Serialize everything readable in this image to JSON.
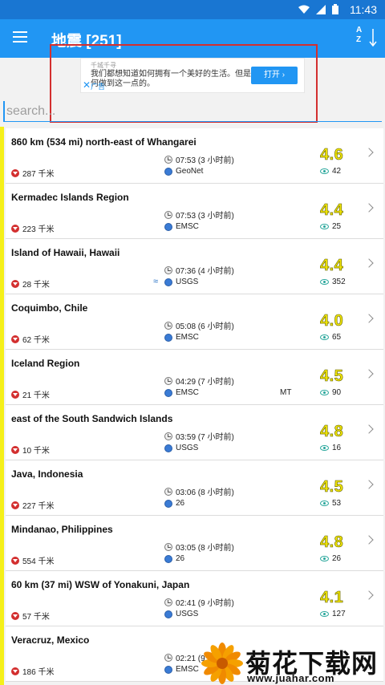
{
  "status": {
    "time": "11:43"
  },
  "appbar": {
    "title": "地震 [251]",
    "sort_label": "A\nZ"
  },
  "ad": {
    "source": "千城千寻",
    "text": "我们都想知道如何拥有一个美好的生活。但是如何做到这一点的。",
    "button": "打开 ›",
    "close": "✕",
    "label": "广告"
  },
  "search": {
    "placeholder": "search..."
  },
  "colors": {
    "accent": "#2196f3",
    "statusbar": "#1976d2",
    "magnitude": "#f2e600",
    "depth_icon": "#d32f2f"
  },
  "quakes": [
    {
      "place": "860 km (534 mi) north-east of Whangarei",
      "time": "07:53 (3 小时前)",
      "depth": "287 千米",
      "source": "GeoNet",
      "magnitude": "4.6",
      "views": "42"
    },
    {
      "place": "Kermadec Islands Region",
      "time": "07:53 (3 小时前)",
      "depth": "223 千米",
      "source": "EMSC",
      "magnitude": "4.4",
      "views": "25"
    },
    {
      "place": "Island of Hawaii, Hawaii",
      "time": "07:36 (4 小时前)",
      "depth": "28 千米",
      "source": "USGS",
      "magnitude": "4.4",
      "views": "352"
    },
    {
      "place": "Coquimbo, Chile",
      "time": "05:08 (6 小时前)",
      "depth": "62 千米",
      "source": "EMSC",
      "magnitude": "4.0",
      "views": "65"
    },
    {
      "place": "Iceland Region",
      "time": "04:29 (7 小时前)",
      "depth": "21 千米",
      "source": "EMSC",
      "extra": "MT",
      "magnitude": "4.5",
      "views": "90"
    },
    {
      "place": "east of the South Sandwich Islands",
      "time": "03:59 (7 小时前)",
      "depth": "10 千米",
      "source": "USGS",
      "magnitude": "4.8",
      "views": "16"
    },
    {
      "place": "Java, Indonesia",
      "time": "03:06 (8 小时前)",
      "depth": "227 千米",
      "source": "26",
      "magnitude": "4.5",
      "views": "53"
    },
    {
      "place": "Mindanao, Philippines",
      "time": "03:05 (8 小时前)",
      "depth": "554 千米",
      "source": "26",
      "magnitude": "4.8",
      "views": "26"
    },
    {
      "place": "60 km (37 mi) WSW of Yonakuni, Japan",
      "time": "02:41 (9 小时前)",
      "depth": "57 千米",
      "source": "USGS",
      "magnitude": "4.1",
      "views": "127"
    },
    {
      "place": "Veracruz, Mexico",
      "time": "02:21 (9 小时前)",
      "depth": "186 千米",
      "source": "EMSC",
      "magnitude": "",
      "views": ""
    }
  ],
  "watermark": {
    "text": "菊花下载网",
    "url": "www.juahar.com"
  }
}
